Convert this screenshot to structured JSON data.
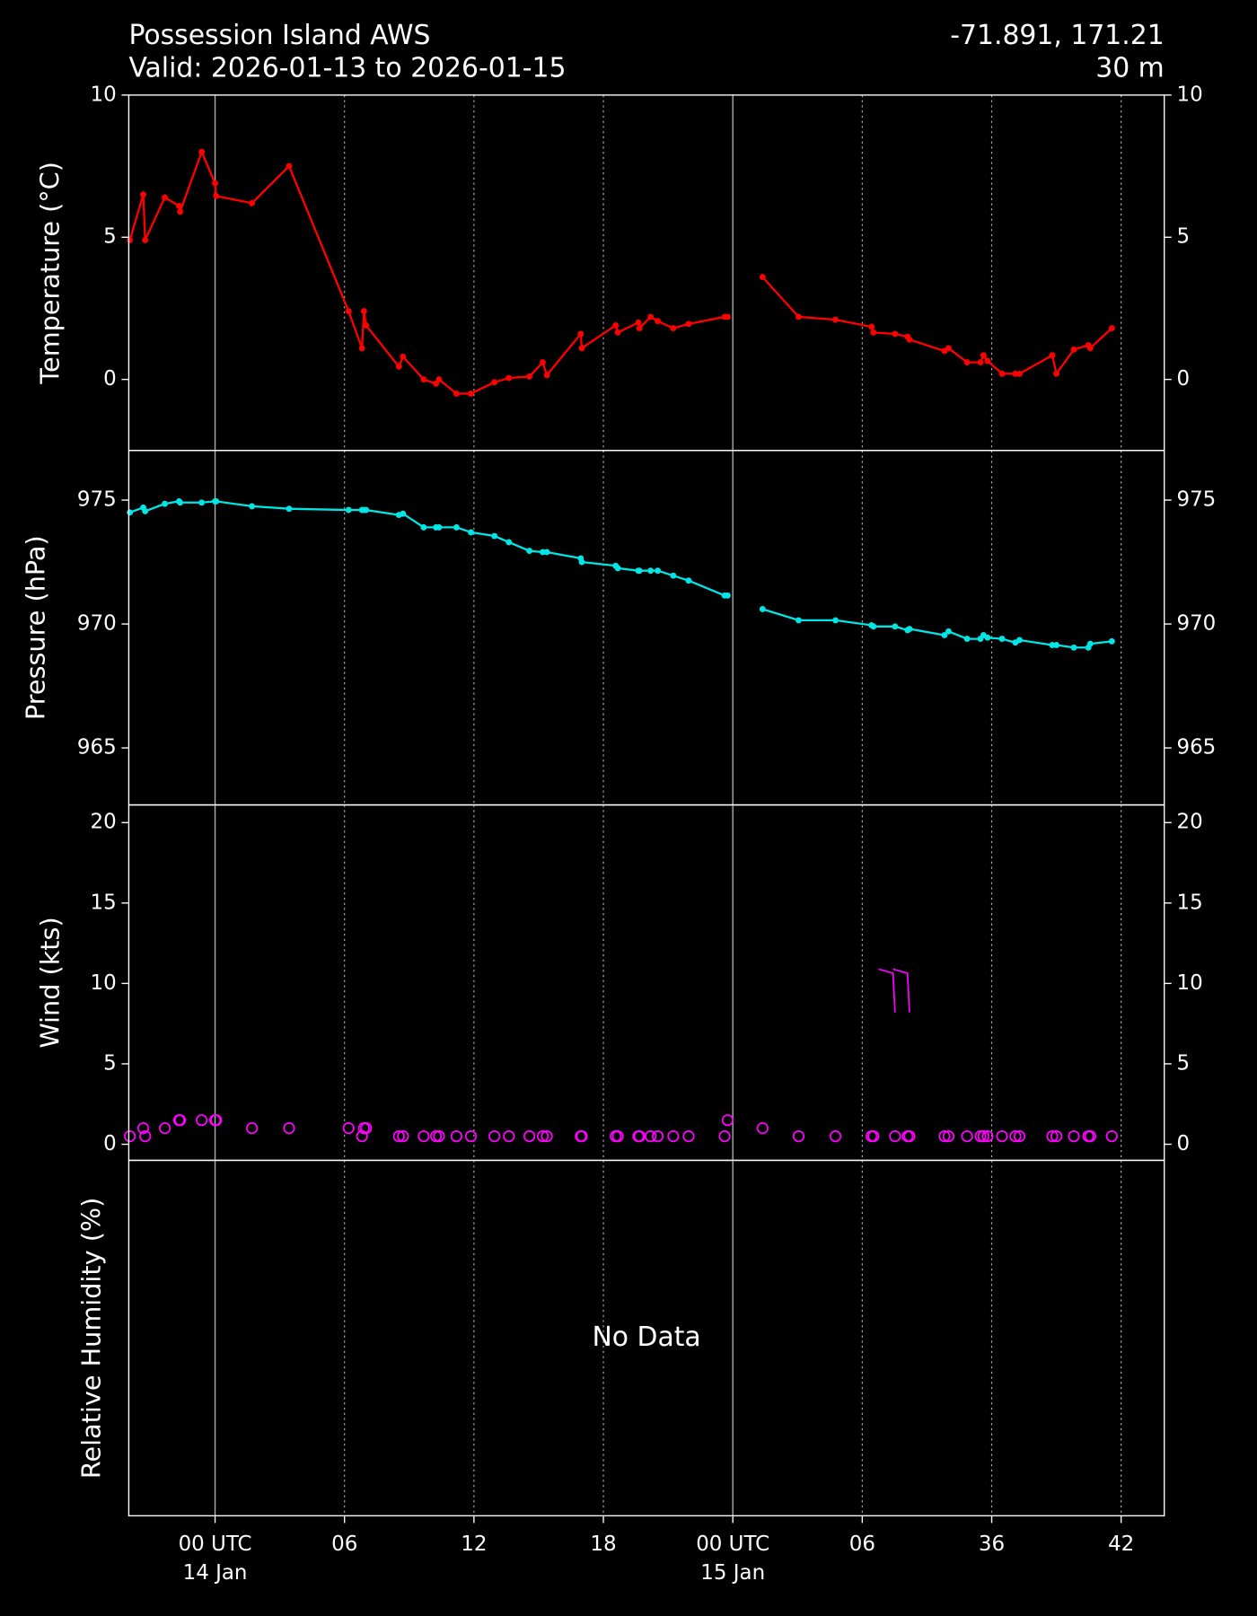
{
  "chart_data": [
    {
      "type": "line",
      "title": "Possession Island AWS",
      "subtitle": "Valid: 2026-01-13 to 2026-01-15",
      "location": "-71.891, 171.21",
      "elevation": "30 m",
      "ylabel": "Temperature (°C)",
      "color": "#ff0000",
      "ylim": [
        -2.5,
        10
      ],
      "yticks": [
        0,
        5,
        10
      ],
      "x": [
        -3.95,
        -3.33,
        -3.24,
        -2.33,
        -1.67,
        -1.62,
        -0.62,
        0,
        0.05,
        1.71,
        3.43,
        6.19,
        6.81,
        6.9,
        7.0,
        8.52,
        8.71,
        9.67,
        10.24,
        10.38,
        11.19,
        11.86,
        12.95,
        13.62,
        14.57,
        15.19,
        15.38,
        16.95,
        17.0,
        18.57,
        18.67,
        19.62,
        19.67,
        20.19,
        20.52,
        21.24,
        21.95,
        23.62,
        23.76,
        null,
        25.38,
        27.05,
        28.76,
        30.43,
        30.52,
        31.52,
        32.1,
        32.19,
        33.81,
        34.0,
        34.86,
        35.48,
        35.62,
        35.81,
        36.48,
        37.1,
        37.29,
        38.81,
        39.0,
        39.81,
        40.48,
        40.57,
        41.57
      ],
      "values": [
        4.9,
        6.5,
        4.9,
        6.4,
        6.1,
        5.9,
        8.0,
        6.9,
        6.45,
        6.2,
        7.5,
        2.4,
        1.1,
        2.4,
        1.9,
        0.45,
        0.8,
        0.0,
        -0.15,
        0.0,
        -0.5,
        -0.5,
        -0.1,
        0.05,
        0.1,
        0.6,
        0.15,
        1.6,
        1.1,
        1.9,
        1.65,
        2.0,
        1.8,
        2.2,
        2.05,
        1.8,
        1.95,
        2.2,
        2.2,
        null,
        3.6,
        2.2,
        2.1,
        1.85,
        1.65,
        1.6,
        1.5,
        1.4,
        1.0,
        1.1,
        0.6,
        0.6,
        0.85,
        0.65,
        0.2,
        0.2,
        0.2,
        0.85,
        0.2,
        1.05,
        1.2,
        1.1,
        1.8
      ]
    },
    {
      "type": "line",
      "ylabel": "Pressure (hPa)",
      "color": "#00e5e5",
      "ylim": [
        962.7,
        977
      ],
      "yticks": [
        965,
        970,
        975
      ],
      "x": [
        -3.95,
        -3.33,
        -3.24,
        -2.33,
        -1.67,
        -1.62,
        -0.62,
        0,
        0.05,
        1.71,
        3.43,
        6.19,
        6.81,
        6.9,
        7.0,
        8.52,
        8.71,
        9.67,
        10.24,
        10.38,
        11.19,
        11.86,
        12.95,
        13.62,
        14.57,
        15.19,
        15.38,
        16.95,
        17.0,
        18.57,
        18.67,
        19.62,
        19.67,
        20.19,
        20.52,
        21.24,
        21.95,
        23.62,
        23.76,
        null,
        25.38,
        27.05,
        28.76,
        30.43,
        30.52,
        31.52,
        32.1,
        32.19,
        33.81,
        34.0,
        34.86,
        35.48,
        35.62,
        35.81,
        36.48,
        37.1,
        37.29,
        38.81,
        39.0,
        39.81,
        40.48,
        40.57,
        41.57
      ],
      "values": [
        974.5,
        974.7,
        974.55,
        974.85,
        974.95,
        974.9,
        974.9,
        974.95,
        974.95,
        974.75,
        974.65,
        974.6,
        974.6,
        974.6,
        974.6,
        974.4,
        974.45,
        973.9,
        973.9,
        973.9,
        973.9,
        973.7,
        973.55,
        973.3,
        972.95,
        972.9,
        972.9,
        972.65,
        972.5,
        972.35,
        972.25,
        972.15,
        972.15,
        972.15,
        972.15,
        971.95,
        971.75,
        971.15,
        971.15,
        null,
        970.6,
        970.15,
        970.15,
        969.95,
        969.9,
        969.9,
        969.75,
        969.8,
        969.55,
        969.7,
        969.4,
        969.4,
        969.55,
        969.45,
        969.4,
        969.25,
        969.35,
        969.15,
        969.15,
        969.05,
        969.05,
        969.2,
        969.3
      ]
    },
    {
      "type": "scatter",
      "ylabel": "Wind (kts)",
      "color": "#ff00ff",
      "ylim": [
        -1,
        21.1
      ],
      "yticks": [
        0,
        5,
        10,
        15,
        20
      ],
      "x": [
        -3.95,
        -3.33,
        -3.24,
        -2.33,
        -1.67,
        -1.62,
        -0.62,
        0,
        0.05,
        1.71,
        3.43,
        6.19,
        6.81,
        6.9,
        7.0,
        8.52,
        8.71,
        9.67,
        10.24,
        10.38,
        11.19,
        11.86,
        12.95,
        13.62,
        14.57,
        15.19,
        15.38,
        16.95,
        17.0,
        18.57,
        18.67,
        19.62,
        19.67,
        20.19,
        20.52,
        21.24,
        21.95,
        23.62,
        23.76,
        null,
        25.38,
        27.05,
        28.76,
        30.43,
        30.52,
        31.52,
        32.1,
        32.19,
        33.81,
        34.0,
        34.86,
        35.48,
        35.62,
        35.81,
        36.48,
        37.1,
        37.29,
        38.81,
        39.0,
        39.81,
        40.48,
        40.57,
        41.57
      ],
      "values": [
        0.5,
        1.0,
        0.5,
        1.0,
        1.5,
        1.5,
        1.5,
        1.5,
        1.5,
        1.0,
        1.0,
        1.0,
        0.5,
        1.0,
        1.0,
        0.5,
        0.5,
        0.5,
        0.5,
        0.5,
        0.5,
        0.5,
        0.5,
        0.5,
        0.5,
        0.5,
        0.5,
        0.5,
        0.5,
        0.5,
        0.5,
        0.5,
        0.5,
        0.5,
        0.5,
        0.5,
        0.5,
        0.5,
        1.5,
        null,
        1.0,
        0.5,
        0.5,
        0.5,
        0.5,
        0.5,
        0.5,
        0.5,
        0.5,
        0.5,
        0.5,
        0.5,
        0.5,
        0.5,
        0.5,
        0.5,
        0.5,
        0.5,
        0.5,
        0.5,
        0.5,
        0.5,
        0.5
      ],
      "barbs": {
        "x": [
          31.52,
          32.19
        ],
        "values": [
          8.2,
          8.2
        ]
      }
    },
    {
      "type": "empty",
      "ylabel": "Relative Humidity (%)",
      "annotation": "No Data",
      "xlim": [
        -4,
        44
      ],
      "xticks": [
        {
          "value": 0,
          "label": [
            "00 UTC",
            "14 Jan"
          ]
        },
        {
          "value": 6,
          "label": "06"
        },
        12,
        18,
        {
          "value": 24,
          "label": [
            "00 UTC",
            "15 Jan"
          ]
        },
        {
          "value": 30,
          "label": "06"
        },
        36,
        42
      ]
    }
  ]
}
